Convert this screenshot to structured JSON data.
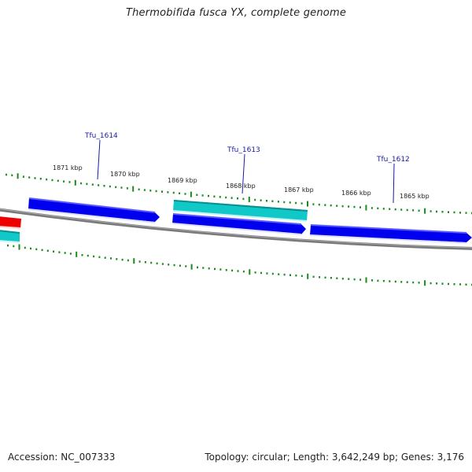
{
  "title": "Thermobifida fusca YX, complete genome",
  "footer": {
    "accession": "Accession: NC_007333",
    "stats": "Topology: circular; Length: 3,642,249 bp; Genes: 3,176"
  },
  "colors": {
    "forward_gene": "#0000ee",
    "reverse_gene": "#10c8c8",
    "rna_gene": "#ee0000",
    "backbone": "#7a7a7a",
    "tick": "#1a8a1a",
    "gene_label": "#1a1aa6"
  },
  "kbp_labels": [
    "1871 kbp",
    "1870 kbp",
    "1869 kbp",
    "1868 kbp",
    "1867 kbp",
    "1866 kbp",
    "1865 kbp"
  ],
  "gene_labels": [
    "Tfu_1614",
    "Tfu_1613",
    "Tfu_1612"
  ]
}
